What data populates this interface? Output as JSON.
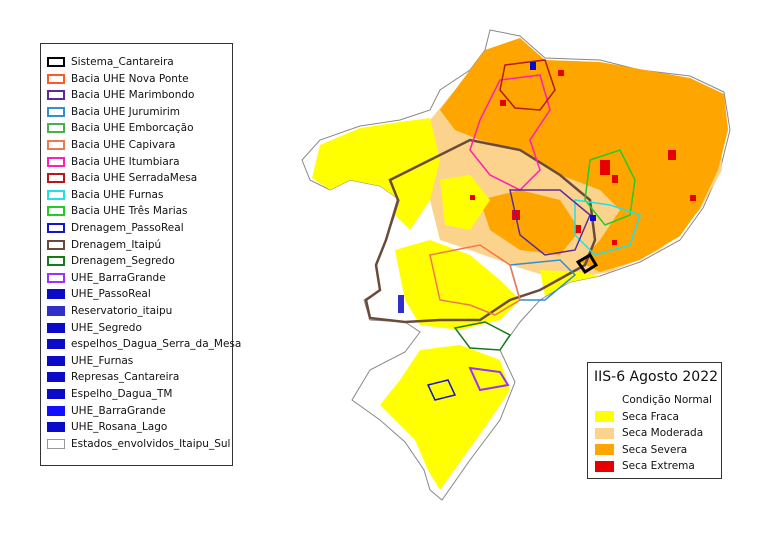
{
  "legend_layers": {
    "items": [
      {
        "label": "Sistema_Cantareira",
        "stroke": "#000000",
        "fill": "none"
      },
      {
        "label": "Bacia UHE Nova Ponte",
        "stroke": "#ff5a1f",
        "fill": "none"
      },
      {
        "label": "Bacia UHE Marimbondo",
        "stroke": "#5b2a9c",
        "fill": "none"
      },
      {
        "label": "Bacia UHE Jurumirim",
        "stroke": "#2f8fd0",
        "fill": "none"
      },
      {
        "label": "Bacia UHE Emborcação",
        "stroke": "#4caf50",
        "fill": "none"
      },
      {
        "label": "Bacia UHE Capivara",
        "stroke": "#f07850",
        "fill": "none"
      },
      {
        "label": "Bacia UHE Itumbiara",
        "stroke": "#ff1fb4",
        "fill": "none"
      },
      {
        "label": "Bacia UHE SerradaMesa",
        "stroke": "#b81818",
        "fill": "none"
      },
      {
        "label": "Bacia UHE Furnas",
        "stroke": "#22e0e8",
        "fill": "none"
      },
      {
        "label": "Bacia UHE Três Marias",
        "stroke": "#22cc22",
        "fill": "none"
      },
      {
        "label": "Drenagem_PassoReal",
        "stroke": "#1414d0",
        "fill": "none"
      },
      {
        "label": "Drenagem_Itaipú",
        "stroke": "#6b4a3a",
        "fill": "none"
      },
      {
        "label": "Drenagem_Segredo",
        "stroke": "#1a7a1a",
        "fill": "none"
      },
      {
        "label": "UHE_BarraGrande",
        "stroke": "#9b30ff",
        "fill": "none"
      },
      {
        "label": "UHE_PassoReal",
        "stroke": "#0a0ac8",
        "fill": "#0a0ac8"
      },
      {
        "label": "Reservatorio_itaipu",
        "stroke": "#3030c8",
        "fill": "#3030c8"
      },
      {
        "label": "UHE_Segredo",
        "stroke": "#0a0ac8",
        "fill": "#0a0ac8"
      },
      {
        "label": "espelhos_Dagua_Serra_da_Mesa",
        "stroke": "#0a0ac8",
        "fill": "#0a0ac8"
      },
      {
        "label": "UHE_Furnas",
        "stroke": "#0a0ac8",
        "fill": "#0a0ac8"
      },
      {
        "label": "Represas_Cantareira",
        "stroke": "#0a0ac8",
        "fill": "#0a0ac8"
      },
      {
        "label": "Espelho_Dagua_TM",
        "stroke": "#0a0ac8",
        "fill": "#0a0ac8"
      },
      {
        "label": "UHE_BarraGrande",
        "stroke": "#1010ff",
        "fill": "#1010ff"
      },
      {
        "label": "UHE_Rosana_Lago",
        "stroke": "#0a0ac8",
        "fill": "#0a0ac8"
      },
      {
        "label": "Estados_envolvidos_Itaipu_Sul",
        "stroke": "#999999",
        "fill": "#ffffff"
      }
    ]
  },
  "legend_drought": {
    "title": "IIS-6 Agosto 2022",
    "items": [
      {
        "label": "Condição Normal",
        "color": "#ffffff"
      },
      {
        "label": "Seca Fraca",
        "color": "#ffff00"
      },
      {
        "label": "Seca Moderada",
        "color": "#fcd38d"
      },
      {
        "label": "Seca Severa",
        "color": "#ffa500"
      },
      {
        "label": "Seca Extrema",
        "color": "#e60000"
      }
    ]
  }
}
